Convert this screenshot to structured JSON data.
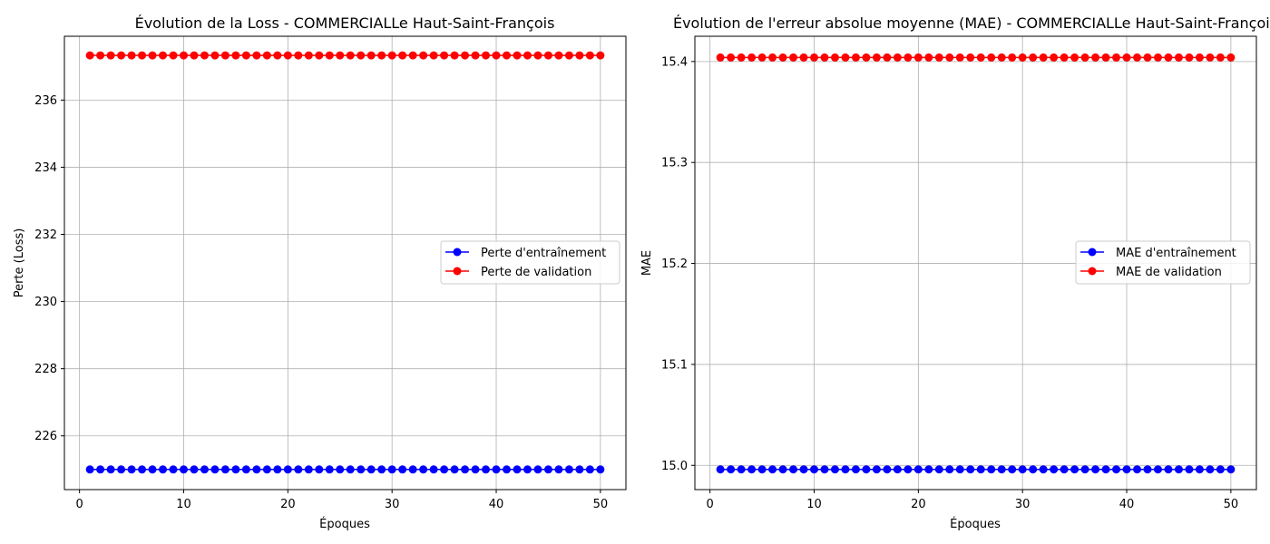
{
  "chart_data": [
    {
      "type": "line",
      "title": "Évolution de la Loss - COMMERCIALLe Haut-Saint-François",
      "xlabel": "Époques",
      "ylabel": "Perte (Loss)",
      "xlim": [
        -1.45,
        52.45
      ],
      "ylim": [
        224.4,
        237.9
      ],
      "xticks": [
        0,
        10,
        20,
        30,
        40,
        50
      ],
      "yticks": [
        226,
        228,
        230,
        232,
        234,
        236
      ],
      "grid": true,
      "legend_position": "center-right",
      "x": [
        1,
        2,
        3,
        4,
        5,
        6,
        7,
        8,
        9,
        10,
        11,
        12,
        13,
        14,
        15,
        16,
        17,
        18,
        19,
        20,
        21,
        22,
        23,
        24,
        25,
        26,
        27,
        28,
        29,
        30,
        31,
        32,
        33,
        34,
        35,
        36,
        37,
        38,
        39,
        40,
        41,
        42,
        43,
        44,
        45,
        46,
        47,
        48,
        49,
        50
      ],
      "series": [
        {
          "name": "Perte d'entraînement",
          "color": "#0000ff",
          "constant": 225.0
        },
        {
          "name": "Perte de validation",
          "color": "#ff0000",
          "constant": 237.33
        }
      ]
    },
    {
      "type": "line",
      "title": "Évolution de l'erreur absolue moyenne (MAE) - COMMERCIALLe Haut-Saint-François",
      "xlabel": "Époques",
      "ylabel": "MAE",
      "xlim": [
        -1.45,
        52.45
      ],
      "ylim": [
        14.976,
        15.425
      ],
      "xticks": [
        0,
        10,
        20,
        30,
        40,
        50
      ],
      "yticks": [
        15.0,
        15.1,
        15.2,
        15.3,
        15.4
      ],
      "ytick_decimals": 1,
      "grid": true,
      "legend_position": "center-right",
      "x": [
        1,
        2,
        3,
        4,
        5,
        6,
        7,
        8,
        9,
        10,
        11,
        12,
        13,
        14,
        15,
        16,
        17,
        18,
        19,
        20,
        21,
        22,
        23,
        24,
        25,
        26,
        27,
        28,
        29,
        30,
        31,
        32,
        33,
        34,
        35,
        36,
        37,
        38,
        39,
        40,
        41,
        42,
        43,
        44,
        45,
        46,
        47,
        48,
        49,
        50
      ],
      "series": [
        {
          "name": "MAE d'entraînement",
          "color": "#0000ff",
          "constant": 14.996
        },
        {
          "name": "MAE de validation",
          "color": "#ff0000",
          "constant": 15.404
        }
      ]
    }
  ]
}
